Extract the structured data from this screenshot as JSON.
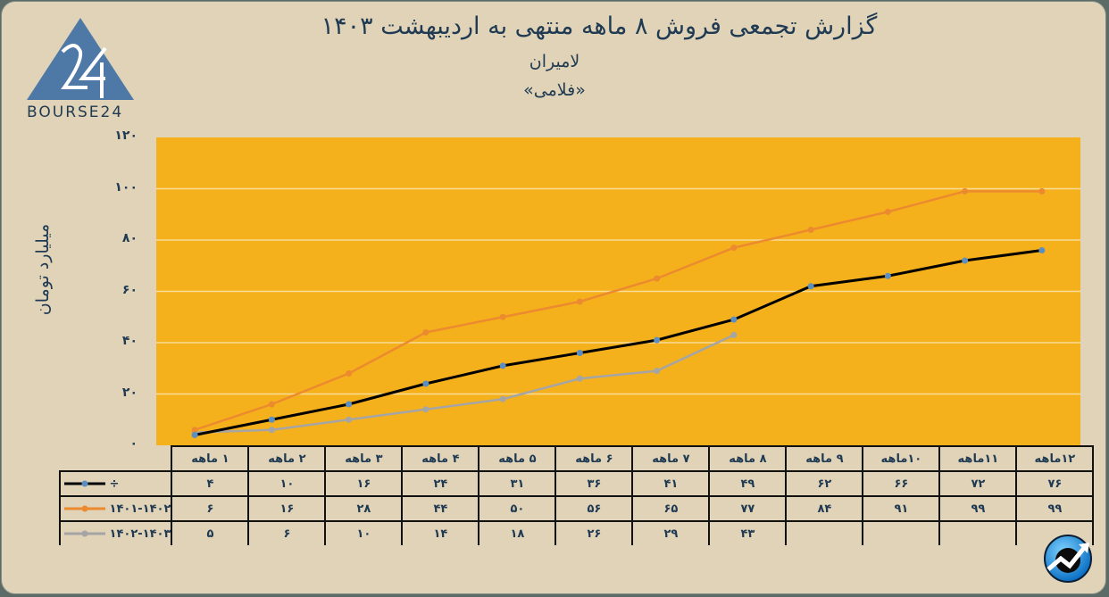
{
  "header": {
    "title": "گزارش تجمعی فروش ۸ ماهه منتهی به اردیبهشت ۱۴۰۳",
    "company": "لامیران",
    "ticker": "«فلامی»"
  },
  "logo": {
    "text": "BOURSE24",
    "mark": "24"
  },
  "badge": {
    "icon": "rising-chart-icon"
  },
  "chart_data": {
    "type": "line",
    "title": "گزارش تجمعی فروش ۸ ماهه منتهی به اردیبهشت ۱۴۰۳",
    "subtitle": "لامیران «فلامی»",
    "xlabel": "",
    "ylabel": "میلیارد تومان",
    "ylim": [
      0,
      120
    ],
    "yticks": [
      0,
      20,
      40,
      60,
      80,
      100,
      120
    ],
    "ytick_labels": [
      "۰",
      "۲۰",
      "۴۰",
      "۶۰",
      "۸۰",
      "۱۰۰",
      "۱۲۰"
    ],
    "grid": true,
    "legend_position": "data-table",
    "categories": [
      "۱ ماهه",
      "۲ ماهه",
      "۳ ماهه",
      "۴ ماهه",
      "۵ ماهه",
      "۶ ماهه",
      "۷ ماهه",
      "۸ ماهه",
      "۹ ماهه",
      "۱۰ماهه",
      "۱۱ماهه",
      "۱۲ماهه"
    ],
    "series": [
      {
        "name": "÷",
        "color": "#000000",
        "marker_color": "#5b8fc2",
        "values": [
          4,
          10,
          16,
          24,
          31,
          36,
          41,
          49,
          62,
          66,
          72,
          76
        ],
        "labels": [
          "۴",
          "۱۰",
          "۱۶",
          "۲۴",
          "۳۱",
          "۳۶",
          "۴۱",
          "۴۹",
          "۶۲",
          "۶۶",
          "۷۲",
          "۷۶"
        ]
      },
      {
        "name": "۱۴۰۱-۱۴۰۲",
        "color": "#ec8a2f",
        "marker_color": "#ec8a2f",
        "values": [
          6,
          16,
          28,
          44,
          50,
          56,
          65,
          77,
          84,
          91,
          99,
          99
        ],
        "labels": [
          "۶",
          "۱۶",
          "۲۸",
          "۴۴",
          "۵۰",
          "۵۶",
          "۶۵",
          "۷۷",
          "۸۴",
          "۹۱",
          "۹۹",
          "۹۹"
        ]
      },
      {
        "name": "۱۴۰۲-۱۴۰۳",
        "color": "#a5a5a5",
        "marker_color": "#a5a5a5",
        "values": [
          5,
          6,
          10,
          14,
          18,
          26,
          29,
          43,
          null,
          null,
          null,
          null
        ],
        "labels": [
          "۵",
          "۶",
          "۱۰",
          "۱۴",
          "۱۸",
          "۲۶",
          "۲۹",
          "۴۳",
          "",
          "",
          "",
          ""
        ]
      }
    ]
  },
  "colors": {
    "background": "#e0d3b7",
    "plot": "#f5b11b",
    "text": "#1f3a52",
    "logo": "#4e79a7"
  }
}
